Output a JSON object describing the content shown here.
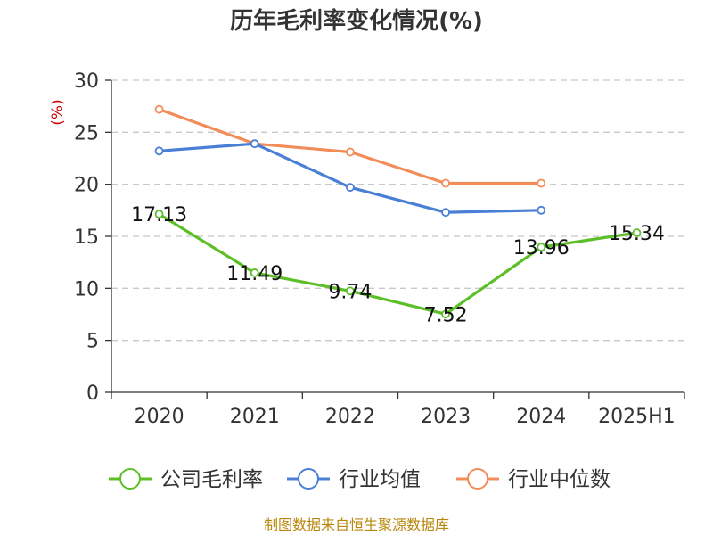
{
  "chart_data": {
    "type": "line",
    "title": "历年毛利率变化情况(%)",
    "ylabel": "(%)",
    "categories": [
      "2020",
      "2021",
      "2022",
      "2023",
      "2024",
      "2025H1"
    ],
    "ylim": [
      0,
      30
    ],
    "yticks": [
      "0",
      "5",
      "10",
      "15",
      "20",
      "25",
      "30"
    ],
    "grid": true,
    "legend_position": "bottom",
    "series": [
      {
        "name": "公司毛利率",
        "color": "#5cbf27",
        "values": [
          17.13,
          11.49,
          9.74,
          7.52,
          13.96,
          15.34
        ],
        "labels": [
          "17.13",
          "11.49",
          "9.74",
          "7.52",
          "13.96",
          "15.34"
        ]
      },
      {
        "name": "行业均值",
        "color": "#4a7fd6",
        "values": [
          23.2,
          23.9,
          19.7,
          17.3,
          17.5,
          null
        ]
      },
      {
        "name": "行业中位数",
        "color": "#f28c58",
        "values": [
          27.2,
          23.9,
          23.1,
          20.1,
          20.1,
          null
        ]
      }
    ]
  },
  "source": "制图数据来自恒生聚源数据库"
}
